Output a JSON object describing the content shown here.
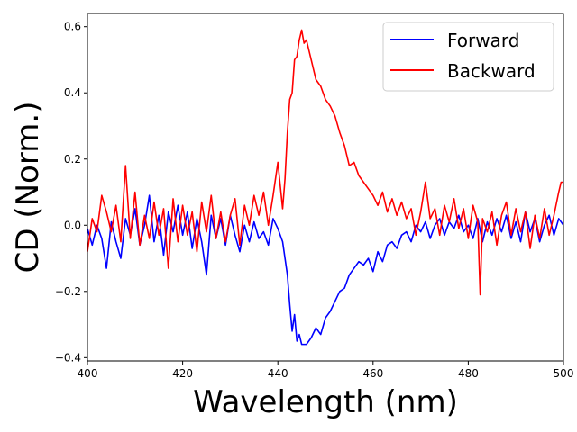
{
  "chart_data": {
    "type": "line",
    "xlabel": "Wavelength (nm)",
    "ylabel": "CD (Norm.)",
    "xlim": [
      400,
      500
    ],
    "ylim": [
      -0.41,
      0.64
    ],
    "xticks": [
      400,
      420,
      440,
      460,
      480,
      500
    ],
    "yticks": [
      -0.4,
      -0.2,
      0.0,
      0.2,
      0.4,
      0.6
    ],
    "xtick_labels": [
      "400",
      "420",
      "440",
      "460",
      "480",
      "500"
    ],
    "ytick_labels": [
      "−0.4",
      "−0.2",
      "0.0",
      "0.2",
      "0.4",
      "0.6"
    ],
    "grid": false,
    "legend_position": "top-right",
    "series": [
      {
        "name": "Forward",
        "color": "#0000ff",
        "points": [
          [
            400,
            -0.01
          ],
          [
            401,
            -0.06
          ],
          [
            402,
            0.0
          ],
          [
            403,
            -0.04
          ],
          [
            404,
            -0.13
          ],
          [
            405,
            0.01
          ],
          [
            406,
            -0.05
          ],
          [
            407,
            -0.1
          ],
          [
            408,
            0.02
          ],
          [
            409,
            -0.03
          ],
          [
            410,
            0.05
          ],
          [
            411,
            -0.06
          ],
          [
            412,
            0.0
          ],
          [
            413,
            0.09
          ],
          [
            414,
            -0.05
          ],
          [
            415,
            0.03
          ],
          [
            416,
            -0.09
          ],
          [
            417,
            0.04
          ],
          [
            418,
            -0.02
          ],
          [
            419,
            0.06
          ],
          [
            420,
            -0.03
          ],
          [
            421,
            0.04
          ],
          [
            422,
            -0.07
          ],
          [
            423,
            0.02
          ],
          [
            424,
            -0.05
          ],
          [
            425,
            -0.15
          ],
          [
            426,
            0.03
          ],
          [
            427,
            -0.04
          ],
          [
            428,
            0.02
          ],
          [
            429,
            -0.06
          ],
          [
            430,
            0.03
          ],
          [
            431,
            -0.03
          ],
          [
            432,
            -0.08
          ],
          [
            433,
            0.0
          ],
          [
            434,
            -0.05
          ],
          [
            435,
            0.01
          ],
          [
            436,
            -0.04
          ],
          [
            437,
            -0.02
          ],
          [
            438,
            -0.06
          ],
          [
            439,
            0.02
          ],
          [
            440,
            -0.01
          ],
          [
            441,
            -0.05
          ],
          [
            442,
            -0.15
          ],
          [
            442.5,
            -0.24
          ],
          [
            443,
            -0.32
          ],
          [
            443.5,
            -0.27
          ],
          [
            444,
            -0.35
          ],
          [
            444.5,
            -0.33
          ],
          [
            445,
            -0.36
          ],
          [
            446,
            -0.36
          ],
          [
            447,
            -0.34
          ],
          [
            448,
            -0.31
          ],
          [
            449,
            -0.33
          ],
          [
            450,
            -0.28
          ],
          [
            451,
            -0.26
          ],
          [
            452,
            -0.23
          ],
          [
            453,
            -0.2
          ],
          [
            454,
            -0.19
          ],
          [
            455,
            -0.15
          ],
          [
            456,
            -0.13
          ],
          [
            457,
            -0.11
          ],
          [
            458,
            -0.12
          ],
          [
            459,
            -0.1
          ],
          [
            460,
            -0.14
          ],
          [
            461,
            -0.08
          ],
          [
            462,
            -0.11
          ],
          [
            463,
            -0.06
          ],
          [
            464,
            -0.05
          ],
          [
            465,
            -0.07
          ],
          [
            466,
            -0.03
          ],
          [
            467,
            -0.02
          ],
          [
            468,
            -0.05
          ],
          [
            469,
            0.0
          ],
          [
            470,
            -0.02
          ],
          [
            471,
            0.01
          ],
          [
            472,
            -0.04
          ],
          [
            473,
            0.0
          ],
          [
            474,
            0.02
          ],
          [
            475,
            -0.03
          ],
          [
            476,
            0.01
          ],
          [
            477,
            -0.01
          ],
          [
            478,
            0.03
          ],
          [
            479,
            -0.02
          ],
          [
            480,
            0.0
          ],
          [
            481,
            -0.04
          ],
          [
            482,
            0.02
          ],
          [
            483,
            -0.05
          ],
          [
            484,
            0.01
          ],
          [
            485,
            -0.03
          ],
          [
            486,
            0.02
          ],
          [
            487,
            -0.02
          ],
          [
            488,
            0.03
          ],
          [
            489,
            -0.04
          ],
          [
            490,
            0.01
          ],
          [
            491,
            -0.05
          ],
          [
            492,
            0.04
          ],
          [
            493,
            -0.02
          ],
          [
            494,
            0.02
          ],
          [
            495,
            -0.05
          ],
          [
            496,
            0.0
          ],
          [
            497,
            0.03
          ],
          [
            498,
            -0.03
          ],
          [
            499,
            0.02
          ],
          [
            500,
            0.0
          ]
        ]
      },
      {
        "name": "Backward",
        "color": "#ff0000",
        "points": [
          [
            400,
            -0.08
          ],
          [
            401,
            0.02
          ],
          [
            402,
            -0.02
          ],
          [
            403,
            0.09
          ],
          [
            404,
            0.04
          ],
          [
            405,
            -0.02
          ],
          [
            406,
            0.06
          ],
          [
            407,
            -0.05
          ],
          [
            408,
            0.18
          ],
          [
            409,
            -0.04
          ],
          [
            410,
            0.1
          ],
          [
            411,
            -0.06
          ],
          [
            412,
            0.03
          ],
          [
            413,
            -0.04
          ],
          [
            414,
            0.07
          ],
          [
            415,
            -0.03
          ],
          [
            416,
            0.05
          ],
          [
            417,
            -0.13
          ],
          [
            418,
            0.08
          ],
          [
            419,
            -0.05
          ],
          [
            420,
            0.06
          ],
          [
            421,
            -0.03
          ],
          [
            422,
            0.04
          ],
          [
            423,
            -0.08
          ],
          [
            424,
            0.07
          ],
          [
            425,
            -0.02
          ],
          [
            426,
            0.09
          ],
          [
            427,
            -0.04
          ],
          [
            428,
            0.04
          ],
          [
            429,
            -0.05
          ],
          [
            430,
            0.03
          ],
          [
            431,
            0.08
          ],
          [
            432,
            -0.06
          ],
          [
            433,
            0.06
          ],
          [
            434,
            0.0
          ],
          [
            435,
            0.09
          ],
          [
            436,
            0.03
          ],
          [
            437,
            0.1
          ],
          [
            438,
            0.0
          ],
          [
            439,
            0.09
          ],
          [
            440,
            0.19
          ],
          [
            441,
            0.05
          ],
          [
            441.5,
            0.14
          ],
          [
            442,
            0.28
          ],
          [
            442.5,
            0.38
          ],
          [
            443,
            0.4
          ],
          [
            443.5,
            0.5
          ],
          [
            444,
            0.51
          ],
          [
            444.5,
            0.56
          ],
          [
            445,
            0.59
          ],
          [
            445.5,
            0.55
          ],
          [
            446,
            0.56
          ],
          [
            447,
            0.5
          ],
          [
            448,
            0.44
          ],
          [
            449,
            0.42
          ],
          [
            450,
            0.38
          ],
          [
            451,
            0.36
          ],
          [
            452,
            0.33
          ],
          [
            453,
            0.28
          ],
          [
            454,
            0.24
          ],
          [
            455,
            0.18
          ],
          [
            456,
            0.19
          ],
          [
            457,
            0.15
          ],
          [
            458,
            0.13
          ],
          [
            459,
            0.11
          ],
          [
            460,
            0.09
          ],
          [
            461,
            0.06
          ],
          [
            462,
            0.1
          ],
          [
            463,
            0.04
          ],
          [
            464,
            0.08
          ],
          [
            465,
            0.03
          ],
          [
            466,
            0.07
          ],
          [
            467,
            0.02
          ],
          [
            468,
            0.05
          ],
          [
            469,
            -0.03
          ],
          [
            470,
            0.04
          ],
          [
            471,
            0.13
          ],
          [
            472,
            0.02
          ],
          [
            473,
            0.05
          ],
          [
            474,
            -0.03
          ],
          [
            475,
            0.06
          ],
          [
            476,
            0.01
          ],
          [
            477,
            0.08
          ],
          [
            478,
            -0.01
          ],
          [
            479,
            0.05
          ],
          [
            480,
            -0.04
          ],
          [
            481,
            0.06
          ],
          [
            482,
            0.01
          ],
          [
            482.5,
            -0.21
          ],
          [
            483,
            0.02
          ],
          [
            484,
            -0.02
          ],
          [
            485,
            0.04
          ],
          [
            486,
            -0.06
          ],
          [
            487,
            0.03
          ],
          [
            488,
            0.07
          ],
          [
            489,
            -0.03
          ],
          [
            490,
            0.05
          ],
          [
            491,
            -0.02
          ],
          [
            492,
            0.04
          ],
          [
            493,
            -0.07
          ],
          [
            494,
            0.03
          ],
          [
            495,
            -0.04
          ],
          [
            496,
            0.05
          ],
          [
            497,
            -0.03
          ],
          [
            498,
            0.03
          ],
          [
            499,
            0.1
          ],
          [
            499.5,
            0.13
          ],
          [
            500,
            0.13
          ]
        ]
      }
    ]
  }
}
